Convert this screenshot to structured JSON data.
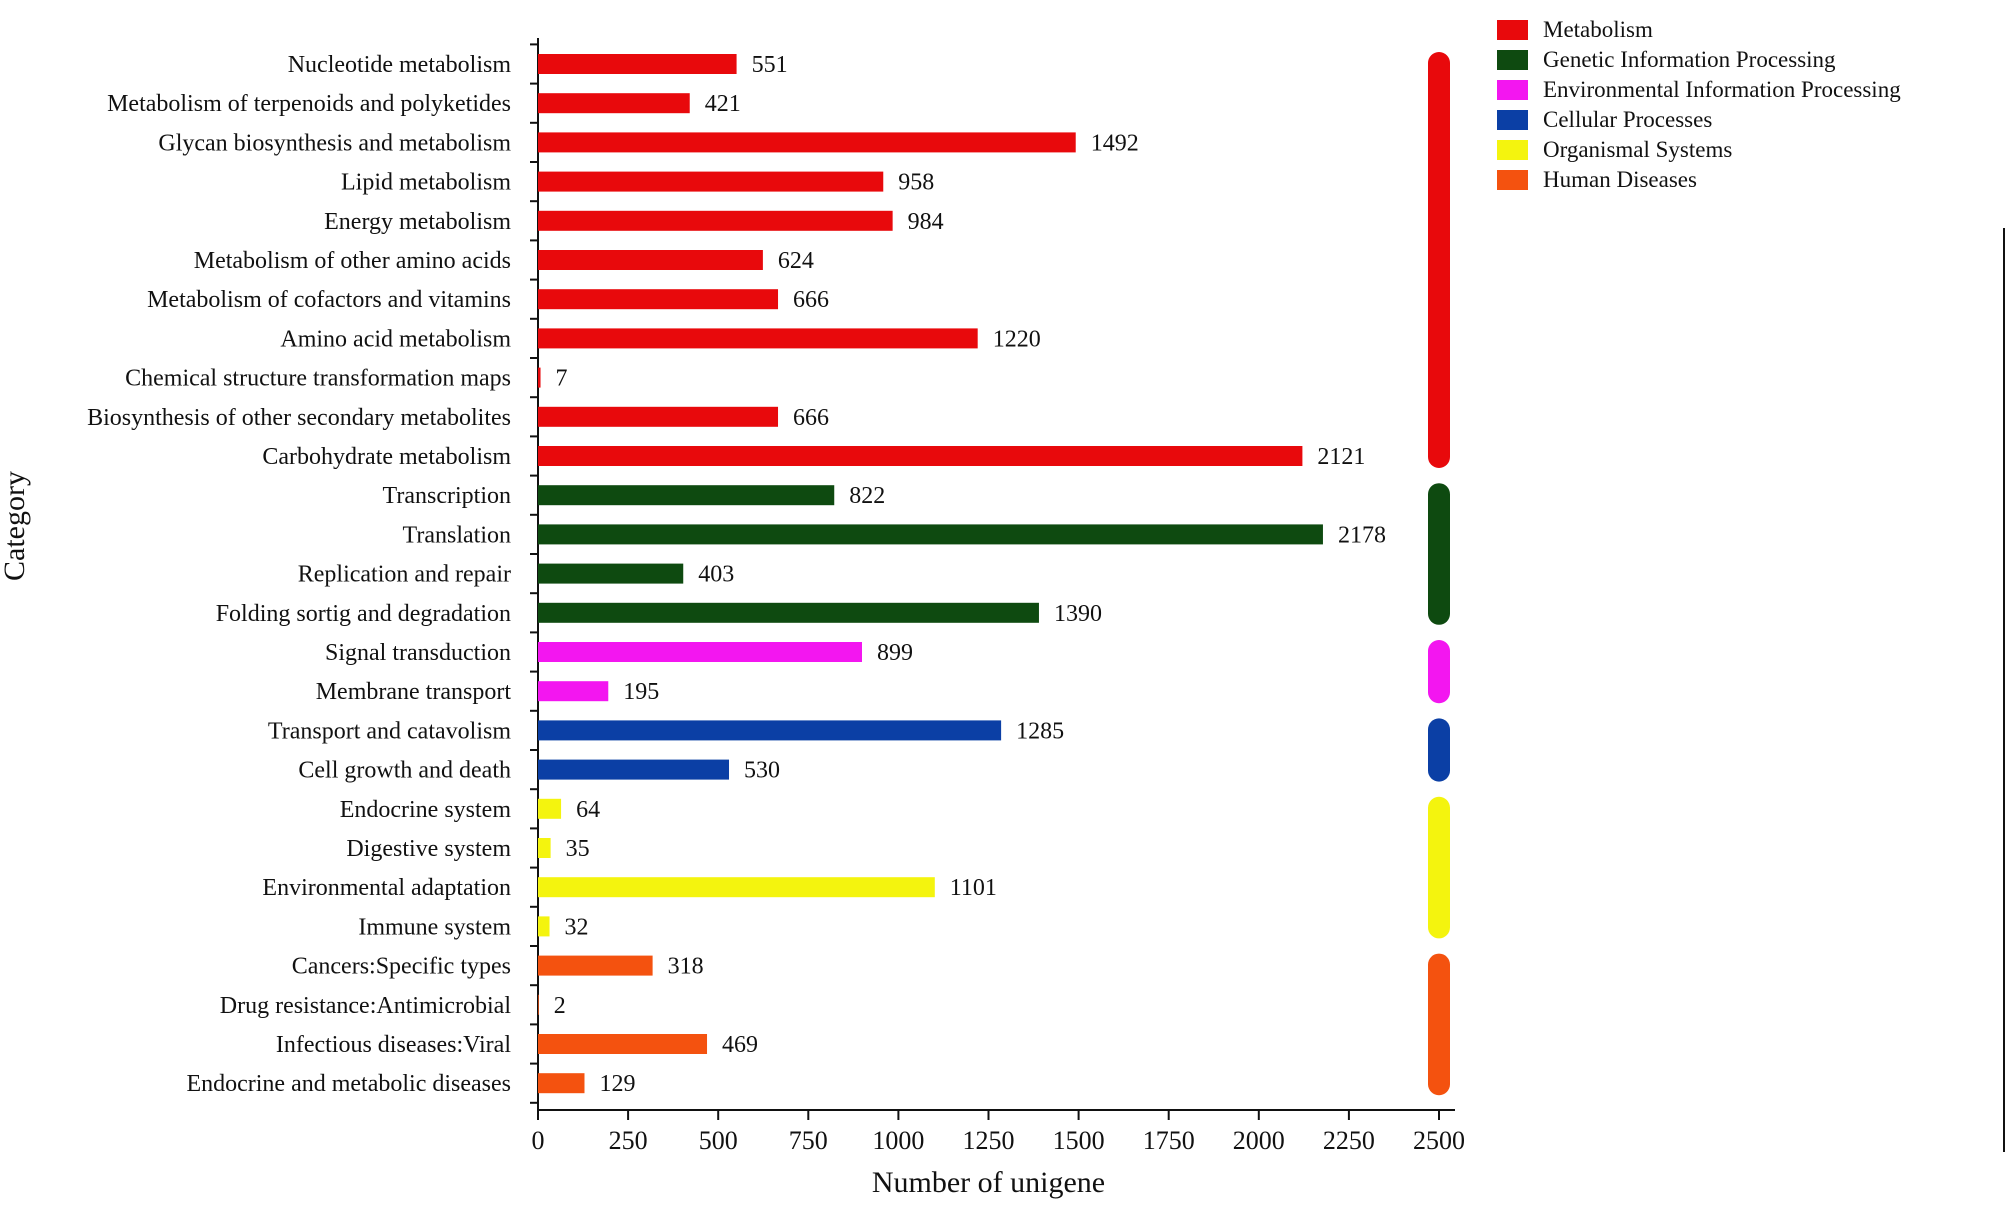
{
  "chart_data": {
    "type": "bar",
    "orientation": "horizontal",
    "xlabel": "Number of unigene",
    "ylabel": "Category",
    "xlim": [
      0,
      2500
    ],
    "xticks": [
      0,
      250,
      500,
      750,
      1000,
      1250,
      1500,
      1750,
      2000,
      2250,
      2500
    ],
    "grid": false,
    "legend_position": "top-right",
    "groups": [
      {
        "name": "Metabolism",
        "color": "#e8090c"
      },
      {
        "name": "Genetic Information Processing",
        "color": "#0e4a10"
      },
      {
        "name": "Environmental Information Processing",
        "color": "#f316f0"
      },
      {
        "name": "Cellular Processes",
        "color": "#0b3fa5"
      },
      {
        "name": "Organismal Systems",
        "color": "#f4f40e"
      },
      {
        "name": "Human Diseases",
        "color": "#f4520f"
      }
    ],
    "categories": [
      "Nucleotide metabolism",
      "Metabolism of terpenoids and polyketides",
      "Glycan biosynthesis and metabolism",
      "Lipid metabolism",
      "Energy metabolism",
      "Metabolism of other amino acids",
      "Metabolism of cofactors and vitamins",
      "Amino acid metabolism",
      "Chemical structure transformation maps",
      "Biosynthesis of other secondary metabolites",
      "Carbohydrate metabolism",
      "Transcription",
      "Translation",
      "Replication and repair",
      "Folding sortig and degradation",
      "Signal transduction",
      "Membrane transport",
      "Transport and catavolism",
      "Cell growth and death",
      "Endocrine system",
      "Digestive system",
      "Environmental adaptation",
      "Immune system",
      "Cancers:Specific types",
      "Drug resistance:Antimicrobial",
      "Infectious diseases:Viral",
      "Endocrine and metabolic diseases"
    ],
    "values": [
      551,
      421,
      1492,
      958,
      984,
      624,
      666,
      1220,
      7,
      666,
      2121,
      822,
      2178,
      403,
      1390,
      899,
      195,
      1285,
      530,
      64,
      35,
      1101,
      32,
      318,
      2,
      469,
      129
    ],
    "group_index": [
      0,
      0,
      0,
      0,
      0,
      0,
      0,
      0,
      0,
      0,
      0,
      1,
      1,
      1,
      1,
      2,
      2,
      3,
      3,
      4,
      4,
      4,
      4,
      5,
      5,
      5,
      5
    ]
  }
}
